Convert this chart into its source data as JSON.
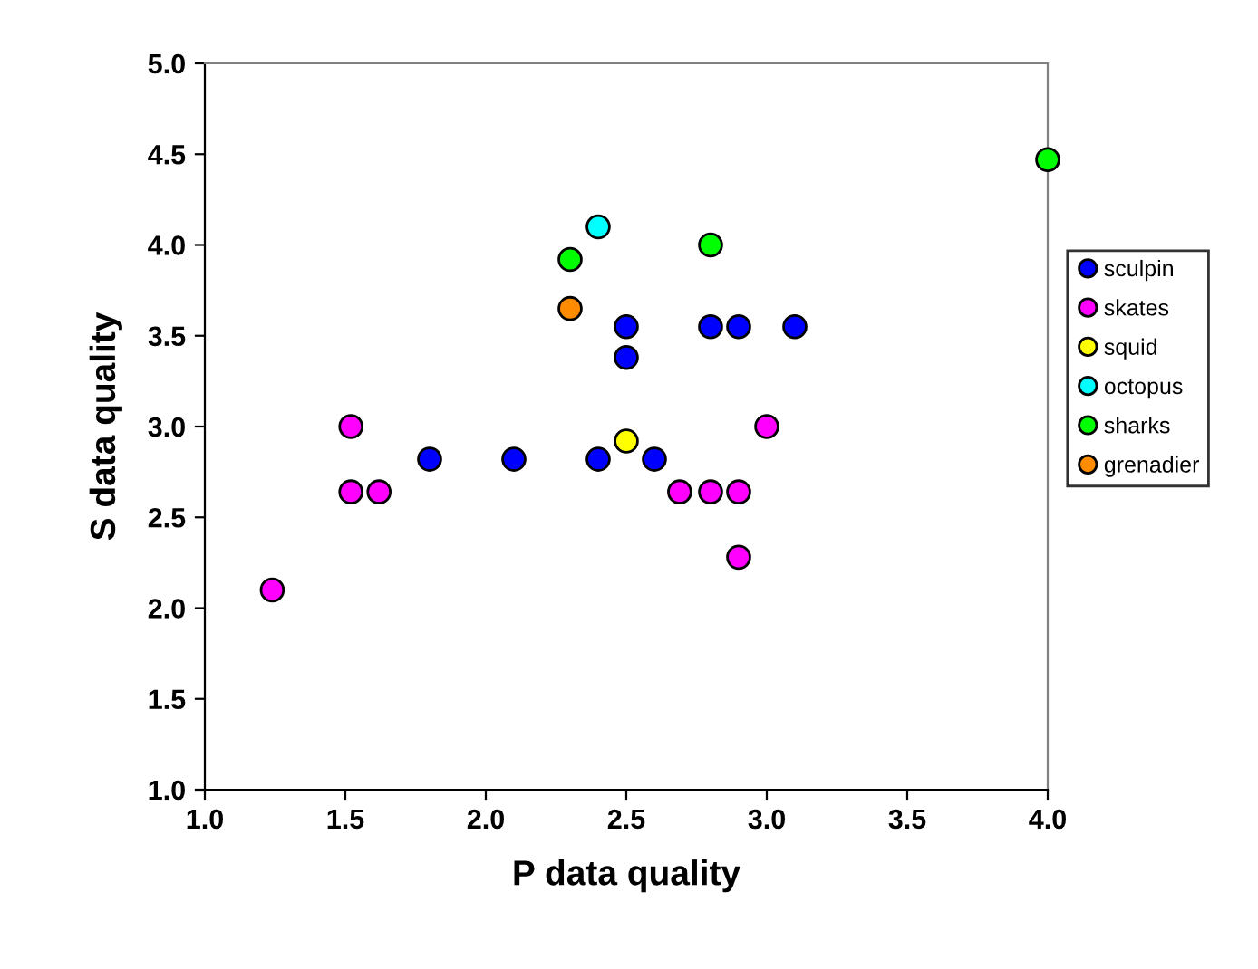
{
  "chart_data": {
    "type": "scatter",
    "xlabel": "P data quality",
    "ylabel": "S data quality",
    "xlim": [
      1.0,
      4.0
    ],
    "ylim": [
      1.0,
      5.0
    ],
    "xticks": [
      {
        "value": 1.0,
        "label": "1.0"
      },
      {
        "value": 1.5,
        "label": "1.5"
      },
      {
        "value": 2.0,
        "label": "2.0"
      },
      {
        "value": 2.5,
        "label": "2.5"
      },
      {
        "value": 3.0,
        "label": "3.0"
      },
      {
        "value": 3.5,
        "label": "3.5"
      },
      {
        "value": 4.0,
        "label": "4.0"
      }
    ],
    "yticks": [
      {
        "value": 1.0,
        "label": "1.0"
      },
      {
        "value": 1.5,
        "label": "1.5"
      },
      {
        "value": 2.0,
        "label": "2.0"
      },
      {
        "value": 2.5,
        "label": "2.5"
      },
      {
        "value": 3.0,
        "label": "3.0"
      },
      {
        "value": 3.5,
        "label": "3.5"
      },
      {
        "value": 4.0,
        "label": "4.0"
      },
      {
        "value": 4.5,
        "label": "4.5"
      },
      {
        "value": 5.0,
        "label": "5.0"
      }
    ],
    "grid": false,
    "legend": "right",
    "marker": "circle",
    "series": [
      {
        "name": "sculpin",
        "color": "#0000ff",
        "x": [
          1.8,
          2.1,
          2.4,
          2.5,
          2.5,
          2.6,
          2.8,
          2.9,
          3.1
        ],
        "values": [
          2.82,
          2.82,
          2.82,
          3.55,
          3.38,
          2.82,
          3.55,
          3.55,
          3.55
        ]
      },
      {
        "name": "skates",
        "color": "#ff00ff",
        "x": [
          1.24,
          1.52,
          1.52,
          1.62,
          2.69,
          2.8,
          2.9,
          2.9,
          3.0
        ],
        "values": [
          2.1,
          3.0,
          2.64,
          2.64,
          2.64,
          2.64,
          2.64,
          2.28,
          3.0
        ]
      },
      {
        "name": "squid",
        "color": "#ffff00",
        "x": [
          2.5
        ],
        "values": [
          2.92
        ]
      },
      {
        "name": "octopus",
        "color": "#00ffff",
        "x": [
          2.4
        ],
        "values": [
          4.1
        ]
      },
      {
        "name": "sharks",
        "color": "#00ff00",
        "x": [
          2.3,
          2.8,
          4.0
        ],
        "values": [
          3.92,
          4.0,
          4.47
        ]
      },
      {
        "name": "grenadier",
        "color": "#ff8c00",
        "x": [
          2.3
        ],
        "values": [
          3.65
        ]
      }
    ]
  }
}
